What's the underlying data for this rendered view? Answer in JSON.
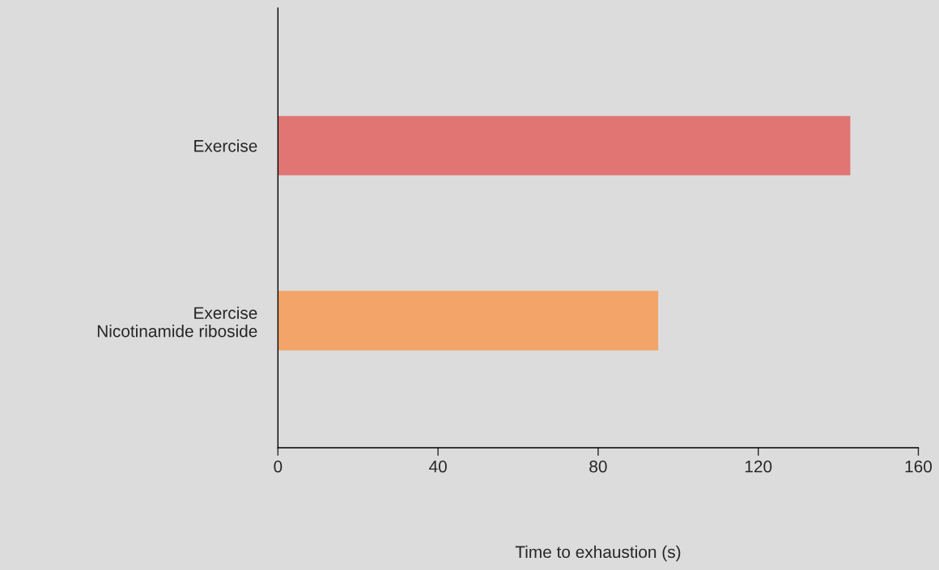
{
  "chart_data": {
    "type": "bar",
    "orientation": "horizontal",
    "categories": [
      "Exercise",
      "Exercise\nNicotinamide riboside"
    ],
    "values": [
      143,
      95
    ],
    "colors": [
      "#e07573",
      "#f3a468"
    ],
    "xlabel": "Time to exhaustion (s)",
    "xlim": [
      0,
      160
    ],
    "xticks": [
      0,
      40,
      80,
      120,
      160
    ],
    "grid": false
  }
}
